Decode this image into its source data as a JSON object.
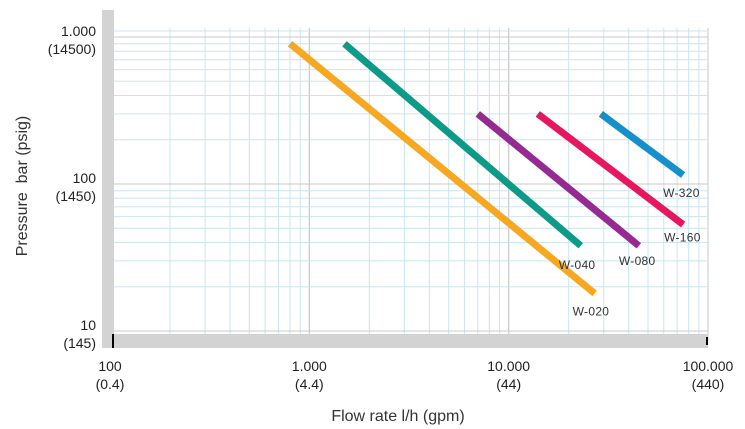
{
  "chart_data": {
    "type": "line",
    "xlabel": "Flow rate l/h (gpm)",
    "ylabel": "Pressure  bar (psig)",
    "x_scale": "log",
    "y_scale": "log",
    "xlim": [
      100,
      100000
    ],
    "ylim": [
      10,
      1000
    ],
    "grid": true,
    "x_ticks": [
      {
        "value": 100,
        "label": "100",
        "sublabel": "(0.4)"
      },
      {
        "value": 1000,
        "label": "1.000",
        "sublabel": "(4.4)"
      },
      {
        "value": 10000,
        "label": "10.000",
        "sublabel": "(44)"
      },
      {
        "value": 100000,
        "label": "100.000",
        "sublabel": "(440)"
      }
    ],
    "y_ticks": [
      {
        "value": 1000,
        "label": "1.000",
        "sublabel": "(14500)"
      },
      {
        "value": 100,
        "label": "100",
        "sublabel": "(1450)"
      },
      {
        "value": 10,
        "label": "10",
        "sublabel": "(145)"
      }
    ],
    "series": [
      {
        "name": "W-020",
        "color": "#F7A823",
        "x": [
          800,
          27000
        ],
        "y": [
          900,
          18
        ]
      },
      {
        "name": "W-040",
        "color": "#0E9A88",
        "x": [
          1500,
          23000
        ],
        "y": [
          900,
          38
        ]
      },
      {
        "name": "W-080",
        "color": "#962A93",
        "x": [
          7000,
          45000
        ],
        "y": [
          300,
          38
        ]
      },
      {
        "name": "W-160",
        "color": "#E5175F",
        "x": [
          14000,
          75000
        ],
        "y": [
          300,
          53
        ]
      },
      {
        "name": "W-320",
        "color": "#1590CB",
        "x": [
          29000,
          75000
        ],
        "y": [
          300,
          115
        ]
      }
    ]
  },
  "colors": {
    "axis_band": "#d3d3d3",
    "grid_major": "#c8c8c8",
    "grid_minor": "#cbe6ee"
  }
}
